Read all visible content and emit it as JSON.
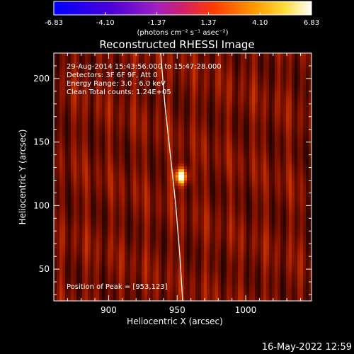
{
  "chart_data": {
    "type": "heatmap",
    "title": "Reconstructed RHESSI Image",
    "xlabel": "Heliocentric X (arcsec)",
    "ylabel": "Heliocentric Y (arcsec)",
    "xlim": [
      860,
      1048
    ],
    "ylim": [
      25,
      220
    ],
    "x_ticks": [
      900,
      950,
      1000
    ],
    "y_ticks": [
      50,
      100,
      150,
      200
    ],
    "colorbar": {
      "ticks": [
        "-6.83",
        "-4.10",
        "-1.37",
        "1.37",
        "4.10",
        "6.83"
      ],
      "range": [
        -6.83,
        6.83
      ],
      "unit_label": "(photons cm⁻² s⁻¹ asec⁻²)"
    },
    "info_lines": [
      "29-Aug-2014 15:43:56.000 to 15:47:28.000",
      "Detectors: 3F 6F 9F, Att 0",
      "Energy Range: 3.0 - 6.0 keV",
      "Clean    Total counts: 1.24E+05"
    ],
    "peak_text": "Position of Peak = [953,123]",
    "peak": {
      "x": 953,
      "y": 123
    },
    "limb_curve": [
      [
        938,
        220
      ],
      [
        941,
        180
      ],
      [
        945,
        140
      ],
      [
        949,
        100
      ],
      [
        952,
        60
      ],
      [
        954,
        25
      ]
    ],
    "timestamp": "16-May-2022 12:59",
    "colors": {
      "background": "#000000",
      "text": "#ffffff"
    }
  }
}
